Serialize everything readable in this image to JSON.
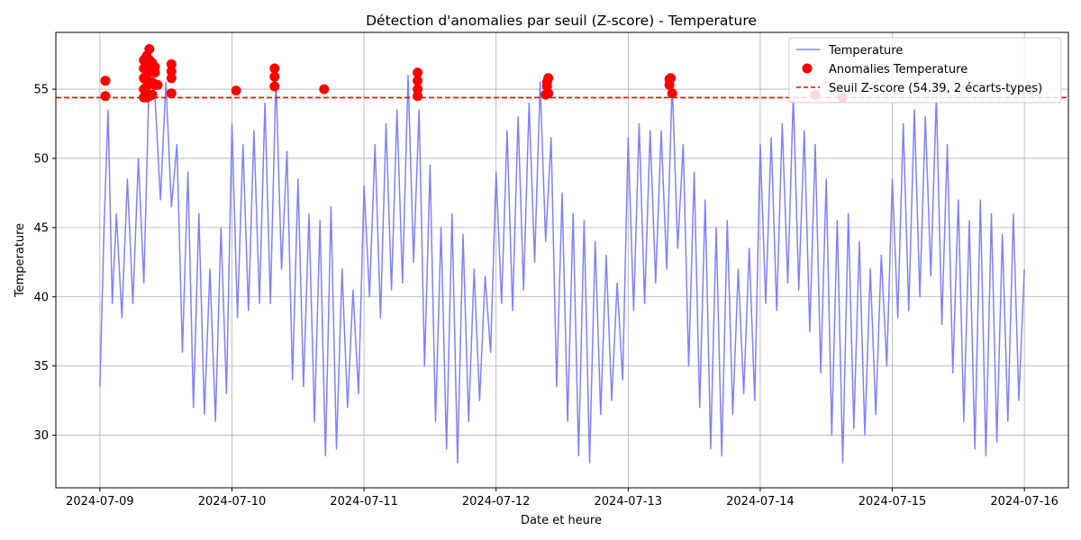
{
  "chart_data": {
    "type": "line",
    "title": "Détection d'anomalies par seuil (Z-score) - Temperature",
    "xlabel": "Date et heure",
    "ylabel": "Temperature",
    "xlim": [
      "2024-07-08T16:00",
      "2024-07-16T08:00"
    ],
    "ylim": [
      26.2,
      59.1
    ],
    "x_ticks": [
      "2024-07-09",
      "2024-07-10",
      "2024-07-11",
      "2024-07-12",
      "2024-07-13",
      "2024-07-14",
      "2024-07-15",
      "2024-07-16"
    ],
    "y_ticks": [
      30,
      35,
      40,
      45,
      50,
      55
    ],
    "grid": true,
    "legend_position": "top-right",
    "colors": {
      "line": "#8080ff",
      "anomaly": "#ff0000",
      "threshold": "#ff0000"
    },
    "threshold": {
      "value": 54.39,
      "label": "Seuil Z-score (54.39, 2 écarts-types)"
    },
    "series": [
      {
        "name": "Temperature",
        "kind": "line",
        "points": [
          [
            "2024-07-09T00:00",
            33.5
          ],
          [
            "2024-07-09T00:45",
            45.0
          ],
          [
            "2024-07-09T01:30",
            53.5
          ],
          [
            "2024-07-09T02:15",
            39.5
          ],
          [
            "2024-07-09T03:00",
            46.0
          ],
          [
            "2024-07-09T04:00",
            38.5
          ],
          [
            "2024-07-09T05:00",
            48.5
          ],
          [
            "2024-07-09T06:00",
            39.5
          ],
          [
            "2024-07-09T07:00",
            50.0
          ],
          [
            "2024-07-09T08:00",
            41.0
          ],
          [
            "2024-07-09T09:00",
            56.5
          ],
          [
            "2024-07-09T10:00",
            54.5
          ],
          [
            "2024-07-09T11:00",
            47.0
          ],
          [
            "2024-07-09T12:00",
            55.5
          ],
          [
            "2024-07-09T13:00",
            46.5
          ],
          [
            "2024-07-09T14:00",
            51.0
          ],
          [
            "2024-07-09T15:00",
            36.0
          ],
          [
            "2024-07-09T16:00",
            49.0
          ],
          [
            "2024-07-09T17:00",
            32.0
          ],
          [
            "2024-07-09T18:00",
            46.0
          ],
          [
            "2024-07-09T19:00",
            31.5
          ],
          [
            "2024-07-09T20:00",
            42.0
          ],
          [
            "2024-07-09T21:00",
            31.0
          ],
          [
            "2024-07-09T22:00",
            45.0
          ],
          [
            "2024-07-09T23:00",
            33.0
          ],
          [
            "2024-07-10T00:00",
            52.5
          ],
          [
            "2024-07-10T01:00",
            38.5
          ],
          [
            "2024-07-10T02:00",
            51.0
          ],
          [
            "2024-07-10T03:00",
            39.0
          ],
          [
            "2024-07-10T04:00",
            52.0
          ],
          [
            "2024-07-10T05:00",
            39.5
          ],
          [
            "2024-07-10T06:00",
            54.0
          ],
          [
            "2024-07-10T07:00",
            39.5
          ],
          [
            "2024-07-10T08:00",
            56.0
          ],
          [
            "2024-07-10T09:00",
            42.0
          ],
          [
            "2024-07-10T10:00",
            50.5
          ],
          [
            "2024-07-10T11:00",
            34.0
          ],
          [
            "2024-07-10T12:00",
            48.5
          ],
          [
            "2024-07-10T13:00",
            33.5
          ],
          [
            "2024-07-10T14:00",
            46.0
          ],
          [
            "2024-07-10T15:00",
            31.0
          ],
          [
            "2024-07-10T16:00",
            45.5
          ],
          [
            "2024-07-10T17:00",
            28.5
          ],
          [
            "2024-07-10T18:00",
            46.5
          ],
          [
            "2024-07-10T19:00",
            29.0
          ],
          [
            "2024-07-10T20:00",
            42.0
          ],
          [
            "2024-07-10T21:00",
            32.0
          ],
          [
            "2024-07-10T22:00",
            40.5
          ],
          [
            "2024-07-10T23:00",
            33.0
          ],
          [
            "2024-07-11T00:00",
            48.0
          ],
          [
            "2024-07-11T01:00",
            40.0
          ],
          [
            "2024-07-11T02:00",
            51.0
          ],
          [
            "2024-07-11T03:00",
            38.5
          ],
          [
            "2024-07-11T04:00",
            52.5
          ],
          [
            "2024-07-11T05:00",
            40.5
          ],
          [
            "2024-07-11T06:00",
            53.5
          ],
          [
            "2024-07-11T07:00",
            41.0
          ],
          [
            "2024-07-11T08:00",
            56.0
          ],
          [
            "2024-07-11T09:00",
            42.5
          ],
          [
            "2024-07-11T10:00",
            53.5
          ],
          [
            "2024-07-11T11:00",
            35.0
          ],
          [
            "2024-07-11T12:00",
            49.5
          ],
          [
            "2024-07-11T13:00",
            31.0
          ],
          [
            "2024-07-11T14:00",
            45.0
          ],
          [
            "2024-07-11T15:00",
            29.0
          ],
          [
            "2024-07-11T16:00",
            46.0
          ],
          [
            "2024-07-11T17:00",
            28.0
          ],
          [
            "2024-07-11T18:00",
            44.5
          ],
          [
            "2024-07-11T19:00",
            31.0
          ],
          [
            "2024-07-11T20:00",
            42.0
          ],
          [
            "2024-07-11T21:00",
            32.5
          ],
          [
            "2024-07-11T22:00",
            41.5
          ],
          [
            "2024-07-11T23:00",
            36.0
          ],
          [
            "2024-07-12T00:00",
            49.0
          ],
          [
            "2024-07-12T01:00",
            39.5
          ],
          [
            "2024-07-12T02:00",
            52.0
          ],
          [
            "2024-07-12T03:00",
            39.0
          ],
          [
            "2024-07-12T04:00",
            53.0
          ],
          [
            "2024-07-12T05:00",
            40.5
          ],
          [
            "2024-07-12T06:00",
            54.0
          ],
          [
            "2024-07-12T07:00",
            42.5
          ],
          [
            "2024-07-12T08:00",
            55.5
          ],
          [
            "2024-07-12T09:00",
            44.0
          ],
          [
            "2024-07-12T10:00",
            51.5
          ],
          [
            "2024-07-12T11:00",
            33.5
          ],
          [
            "2024-07-12T12:00",
            47.5
          ],
          [
            "2024-07-12T13:00",
            31.0
          ],
          [
            "2024-07-12T14:00",
            46.0
          ],
          [
            "2024-07-12T15:00",
            28.5
          ],
          [
            "2024-07-12T16:00",
            45.5
          ],
          [
            "2024-07-12T17:00",
            28.0
          ],
          [
            "2024-07-12T18:00",
            44.0
          ],
          [
            "2024-07-12T19:00",
            31.5
          ],
          [
            "2024-07-12T20:00",
            43.0
          ],
          [
            "2024-07-12T21:00",
            32.5
          ],
          [
            "2024-07-12T22:00",
            41.0
          ],
          [
            "2024-07-12T23:00",
            34.0
          ],
          [
            "2024-07-13T00:00",
            51.5
          ],
          [
            "2024-07-13T01:00",
            39.0
          ],
          [
            "2024-07-13T02:00",
            52.5
          ],
          [
            "2024-07-13T03:00",
            39.5
          ],
          [
            "2024-07-13T04:00",
            52.0
          ],
          [
            "2024-07-13T05:00",
            41.0
          ],
          [
            "2024-07-13T06:00",
            52.0
          ],
          [
            "2024-07-13T07:00",
            42.0
          ],
          [
            "2024-07-13T08:00",
            55.5
          ],
          [
            "2024-07-13T09:00",
            43.5
          ],
          [
            "2024-07-13T10:00",
            51.0
          ],
          [
            "2024-07-13T11:00",
            35.0
          ],
          [
            "2024-07-13T12:00",
            49.0
          ],
          [
            "2024-07-13T13:00",
            32.0
          ],
          [
            "2024-07-13T14:00",
            47.0
          ],
          [
            "2024-07-13T15:00",
            29.0
          ],
          [
            "2024-07-13T16:00",
            45.0
          ],
          [
            "2024-07-13T17:00",
            28.5
          ],
          [
            "2024-07-13T18:00",
            45.5
          ],
          [
            "2024-07-13T19:00",
            31.5
          ],
          [
            "2024-07-13T20:00",
            42.0
          ],
          [
            "2024-07-13T21:00",
            33.0
          ],
          [
            "2024-07-13T22:00",
            43.5
          ],
          [
            "2024-07-13T23:00",
            32.5
          ],
          [
            "2024-07-14T00:00",
            51.0
          ],
          [
            "2024-07-14T01:00",
            39.5
          ],
          [
            "2024-07-14T02:00",
            51.5
          ],
          [
            "2024-07-14T03:00",
            39.0
          ],
          [
            "2024-07-14T04:00",
            52.5
          ],
          [
            "2024-07-14T05:00",
            41.0
          ],
          [
            "2024-07-14T06:00",
            54.5
          ],
          [
            "2024-07-14T07:00",
            40.5
          ],
          [
            "2024-07-14T08:00",
            52.0
          ],
          [
            "2024-07-14T09:00",
            37.5
          ],
          [
            "2024-07-14T10:00",
            51.0
          ],
          [
            "2024-07-14T11:00",
            34.5
          ],
          [
            "2024-07-14T12:00",
            48.5
          ],
          [
            "2024-07-14T13:00",
            30.0
          ],
          [
            "2024-07-14T14:00",
            45.5
          ],
          [
            "2024-07-14T15:00",
            28.0
          ],
          [
            "2024-07-14T16:00",
            46.0
          ],
          [
            "2024-07-14T17:00",
            30.5
          ],
          [
            "2024-07-14T18:00",
            44.0
          ],
          [
            "2024-07-14T19:00",
            30.0
          ],
          [
            "2024-07-14T20:00",
            42.0
          ],
          [
            "2024-07-14T21:00",
            31.5
          ],
          [
            "2024-07-14T22:00",
            43.0
          ],
          [
            "2024-07-14T23:00",
            35.0
          ],
          [
            "2024-07-15T00:00",
            48.5
          ],
          [
            "2024-07-15T01:00",
            38.5
          ],
          [
            "2024-07-15T02:00",
            52.5
          ],
          [
            "2024-07-15T03:00",
            39.0
          ],
          [
            "2024-07-15T04:00",
            53.5
          ],
          [
            "2024-07-15T05:00",
            40.0
          ],
          [
            "2024-07-15T06:00",
            53.0
          ],
          [
            "2024-07-15T07:00",
            41.5
          ],
          [
            "2024-07-15T08:00",
            54.5
          ],
          [
            "2024-07-15T09:00",
            38.0
          ],
          [
            "2024-07-15T10:00",
            51.0
          ],
          [
            "2024-07-15T11:00",
            34.5
          ],
          [
            "2024-07-15T12:00",
            47.0
          ],
          [
            "2024-07-15T13:00",
            31.0
          ],
          [
            "2024-07-15T14:00",
            45.5
          ],
          [
            "2024-07-15T15:00",
            29.0
          ],
          [
            "2024-07-15T16:00",
            47.0
          ],
          [
            "2024-07-15T17:00",
            28.5
          ],
          [
            "2024-07-15T18:00",
            46.0
          ],
          [
            "2024-07-15T19:00",
            29.5
          ],
          [
            "2024-07-15T20:00",
            44.5
          ],
          [
            "2024-07-15T21:00",
            31.0
          ],
          [
            "2024-07-15T22:00",
            46.0
          ],
          [
            "2024-07-15T23:00",
            32.5
          ],
          [
            "2024-07-16T00:00",
            42.0
          ]
        ]
      },
      {
        "name": "Anomalies Temperature",
        "kind": "scatter",
        "points": [
          [
            "2024-07-09T01:00",
            55.6
          ],
          [
            "2024-07-09T01:00",
            54.5
          ],
          [
            "2024-07-09T08:00",
            54.4
          ],
          [
            "2024-07-09T08:00",
            55.0
          ],
          [
            "2024-07-09T08:00",
            55.8
          ],
          [
            "2024-07-09T08:00",
            56.5
          ],
          [
            "2024-07-09T08:00",
            57.1
          ],
          [
            "2024-07-09T08:30",
            54.4
          ],
          [
            "2024-07-09T08:30",
            55.2
          ],
          [
            "2024-07-09T08:30",
            56.0
          ],
          [
            "2024-07-09T08:30",
            56.8
          ],
          [
            "2024-07-09T08:30",
            57.4
          ],
          [
            "2024-07-09T09:00",
            54.5
          ],
          [
            "2024-07-09T09:00",
            55.4
          ],
          [
            "2024-07-09T09:00",
            56.3
          ],
          [
            "2024-07-09T09:00",
            57.1
          ],
          [
            "2024-07-09T09:00",
            57.9
          ],
          [
            "2024-07-09T09:30",
            54.6
          ],
          [
            "2024-07-09T09:30",
            55.5
          ],
          [
            "2024-07-09T09:30",
            56.4
          ],
          [
            "2024-07-09T09:30",
            56.9
          ],
          [
            "2024-07-09T10:00",
            55.3
          ],
          [
            "2024-07-09T10:00",
            56.2
          ],
          [
            "2024-07-09T10:00",
            56.6
          ],
          [
            "2024-07-09T10:30",
            55.3
          ],
          [
            "2024-07-09T13:00",
            54.7
          ],
          [
            "2024-07-09T13:00",
            55.8
          ],
          [
            "2024-07-09T13:00",
            56.3
          ],
          [
            "2024-07-09T13:00",
            56.8
          ],
          [
            "2024-07-10T00:45",
            54.9
          ],
          [
            "2024-07-10T07:45",
            55.2
          ],
          [
            "2024-07-10T07:45",
            55.9
          ],
          [
            "2024-07-10T07:45",
            56.5
          ],
          [
            "2024-07-10T16:45",
            55.0
          ],
          [
            "2024-07-11T09:45",
            54.5
          ],
          [
            "2024-07-11T09:45",
            55.0
          ],
          [
            "2024-07-11T09:45",
            55.6
          ],
          [
            "2024-07-11T09:45",
            56.2
          ],
          [
            "2024-07-12T09:00",
            54.6
          ],
          [
            "2024-07-12T09:15",
            55.2
          ],
          [
            "2024-07-12T09:15",
            55.5
          ],
          [
            "2024-07-12T09:30",
            55.8
          ],
          [
            "2024-07-12T09:30",
            54.7
          ],
          [
            "2024-07-13T07:30",
            55.3
          ],
          [
            "2024-07-13T07:30",
            55.7
          ],
          [
            "2024-07-13T07:45",
            55.8
          ],
          [
            "2024-07-13T08:00",
            54.7
          ],
          [
            "2024-07-14T10:00",
            54.6
          ],
          [
            "2024-07-14T15:00",
            54.4
          ]
        ]
      }
    ]
  }
}
